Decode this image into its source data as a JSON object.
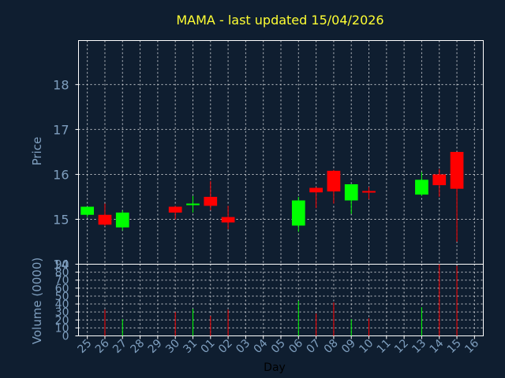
{
  "chart_data": [
    {
      "type": "candlestick",
      "title": "MAMA - last updated 15/04/2026",
      "ylabel": "Price",
      "ylim": [
        14,
        18
      ],
      "yticks": [
        "14",
        "15",
        "16",
        "17",
        "18"
      ],
      "grid": true,
      "up_color": "#00ff00",
      "down_color": "#ff0000",
      "candles": [
        {
          "day": "25",
          "open": 15.1,
          "high": 15.28,
          "low": 15.05,
          "close": 15.28
        },
        {
          "day": "26",
          "open": 15.1,
          "high": 15.35,
          "low": 14.85,
          "close": 14.88
        },
        {
          "day": "27",
          "open": 14.82,
          "high": 15.2,
          "low": 14.75,
          "close": 15.15
        },
        {
          "day": "30",
          "open": 15.28,
          "high": 15.3,
          "low": 15.0,
          "close": 15.15
        },
        {
          "day": "31",
          "open": 15.32,
          "high": 15.52,
          "low": 15.15,
          "close": 15.35
        },
        {
          "day": "01",
          "open": 15.5,
          "high": 15.85,
          "low": 15.2,
          "close": 15.3
        },
        {
          "day": "02",
          "open": 15.05,
          "high": 15.3,
          "low": 14.78,
          "close": 14.93
        },
        {
          "day": "06",
          "open": 14.86,
          "high": 15.5,
          "low": 14.72,
          "close": 15.42
        },
        {
          "day": "07",
          "open": 15.7,
          "high": 15.72,
          "low": 15.25,
          "close": 15.6
        },
        {
          "day": "08",
          "open": 16.08,
          "high": 16.1,
          "low": 15.35,
          "close": 15.62
        },
        {
          "day": "09",
          "open": 15.42,
          "high": 15.78,
          "low": 15.12,
          "close": 15.78
        },
        {
          "day": "10",
          "open": 15.63,
          "high": 15.72,
          "low": 15.45,
          "close": 15.6
        },
        {
          "day": "13",
          "open": 15.55,
          "high": 16.05,
          "low": 15.52,
          "close": 15.88
        },
        {
          "day": "14",
          "open": 16.0,
          "high": 16.12,
          "low": 15.5,
          "close": 15.76
        },
        {
          "day": "15",
          "open": 16.5,
          "high": 16.5,
          "low": 14.5,
          "close": 15.68
        }
      ]
    },
    {
      "type": "bar",
      "ylabel": "Volume (0000)",
      "ylim": [
        0,
        90
      ],
      "yticks": [
        "0",
        "10",
        "20",
        "30",
        "40",
        "50",
        "60",
        "70",
        "80",
        "90"
      ],
      "categories": [
        "25",
        "26",
        "27",
        "28",
        "29",
        "30",
        "31",
        "01",
        "02",
        "03",
        "04",
        "05",
        "06",
        "07",
        "08",
        "09",
        "10",
        "11",
        "12",
        "13",
        "14",
        "15",
        "16"
      ],
      "xlabel": "Day",
      "volumes": [
        {
          "day": "26",
          "value": 33,
          "direction": "down"
        },
        {
          "day": "27",
          "value": 21,
          "direction": "up"
        },
        {
          "day": "30",
          "value": 30,
          "direction": "down"
        },
        {
          "day": "31",
          "value": 34,
          "direction": "up"
        },
        {
          "day": "01",
          "value": 25,
          "direction": "down"
        },
        {
          "day": "02",
          "value": 33,
          "direction": "down"
        },
        {
          "day": "06",
          "value": 44,
          "direction": "up"
        },
        {
          "day": "07",
          "value": 28,
          "direction": "down"
        },
        {
          "day": "08",
          "value": 42,
          "direction": "down"
        },
        {
          "day": "09",
          "value": 21,
          "direction": "up"
        },
        {
          "day": "10",
          "value": 22,
          "direction": "down"
        },
        {
          "day": "13",
          "value": 36,
          "direction": "up"
        },
        {
          "day": "14",
          "value": 90,
          "direction": "down"
        },
        {
          "day": "15",
          "value": 88,
          "direction": "down"
        }
      ]
    }
  ]
}
